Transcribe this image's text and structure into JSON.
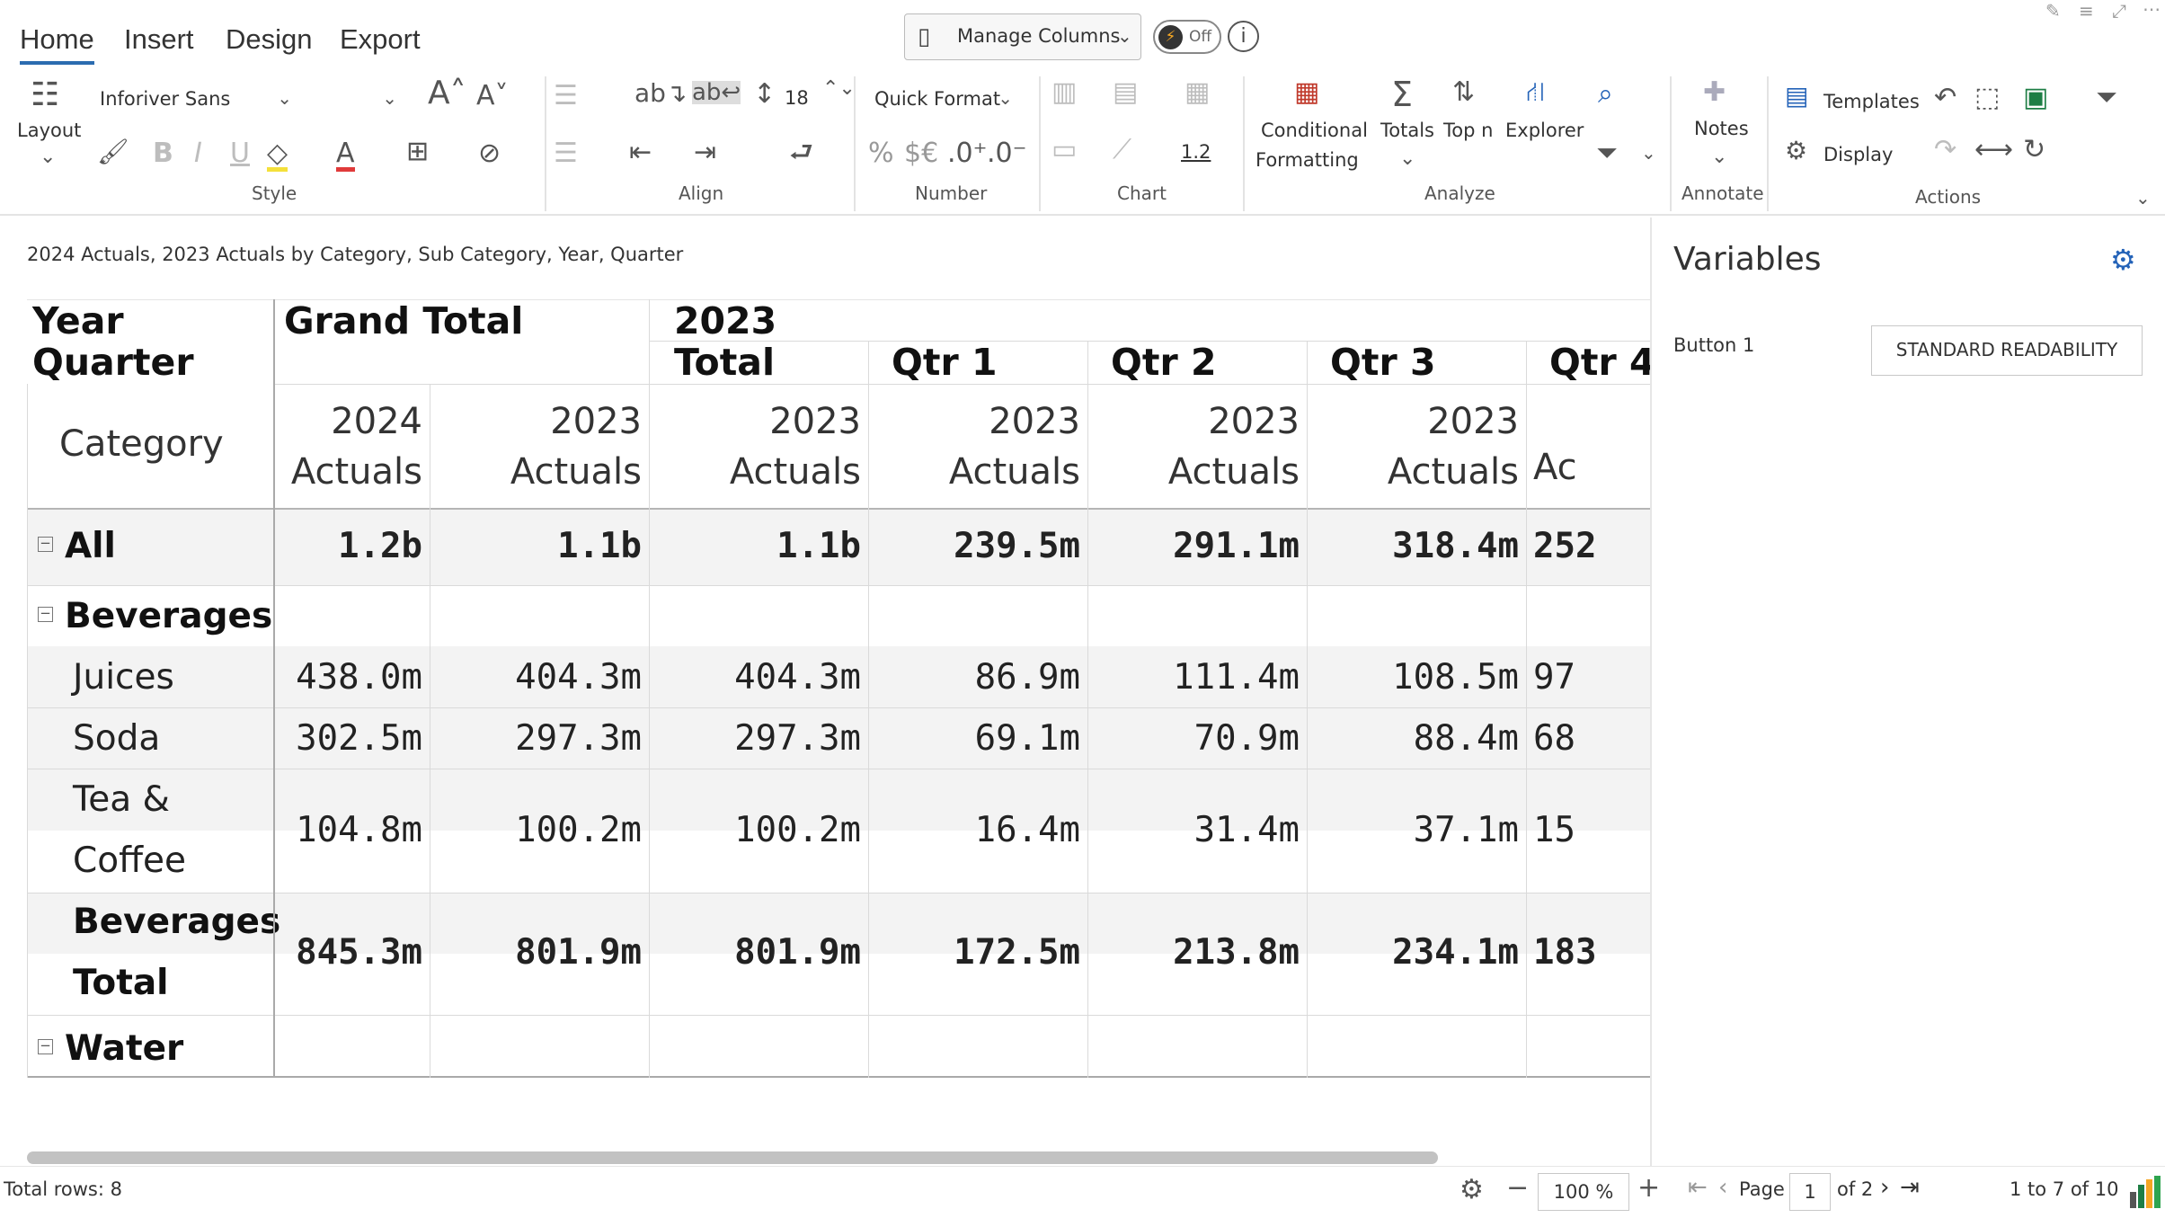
{
  "ribbon": {
    "tabs": [
      "Home",
      "Insert",
      "Design",
      "Export"
    ],
    "manage_columns": "Manage Columns",
    "toggle_off": "Off",
    "layout_label": "Layout",
    "font_name": "Inforiver Sans",
    "font_size_value": "",
    "row_height": "18",
    "quick_format": "Quick Format",
    "decimal_value": "1.2",
    "conditional_formatting": [
      "Conditional",
      "Formatting"
    ],
    "totals": "Totals",
    "top_n": "Top n",
    "explorer": "Explorer",
    "notes": "Notes",
    "templates": "Templates",
    "display": "Display",
    "groups": [
      "Style",
      "Align",
      "Number",
      "Chart",
      "Analyze",
      "Annotate",
      "Actions"
    ]
  },
  "subtitle": "2024 Actuals, 2023 Actuals by Category, Sub Category, Year, Quarter",
  "table": {
    "corner_labels": [
      "Year",
      "Quarter"
    ],
    "category_label": "Category",
    "grand_total": "Grand Total",
    "year_2023": "2023",
    "col_groups": [
      "Total",
      "Qtr 1",
      "Qtr 2",
      "Qtr 3",
      "Qtr 4"
    ],
    "measures": [
      [
        "2024",
        "Actuals"
      ],
      [
        "2023",
        "Actuals"
      ],
      [
        "2023",
        "Actuals"
      ],
      [
        "2023",
        "Actuals"
      ],
      [
        "2023",
        "Actuals"
      ],
      [
        "2023",
        "Actuals"
      ],
      [
        "",
        "Ac"
      ]
    ],
    "rows": [
      {
        "label": "All",
        "values": [
          "1.2b",
          "1.1b",
          "1.1b",
          "239.5m",
          "291.1m",
          "318.4m",
          "252"
        ]
      },
      {
        "label": "Beverages",
        "values": [
          "",
          "",
          "",
          "",
          "",
          "",
          ""
        ]
      },
      {
        "label": "Juices",
        "values": [
          "438.0m",
          "404.3m",
          "404.3m",
          "86.9m",
          "111.4m",
          "108.5m",
          "97"
        ]
      },
      {
        "label": "Soda",
        "values": [
          "302.5m",
          "297.3m",
          "297.3m",
          "69.1m",
          "70.9m",
          "88.4m",
          "68"
        ]
      },
      {
        "label": [
          "Tea &",
          "Coffee"
        ],
        "values": [
          "104.8m",
          "100.2m",
          "100.2m",
          "16.4m",
          "31.4m",
          "37.1m",
          "15"
        ]
      },
      {
        "label": [
          "Beverages",
          "Total"
        ],
        "values": [
          "845.3m",
          "801.9m",
          "801.9m",
          "172.5m",
          "213.8m",
          "234.1m",
          "183"
        ]
      },
      {
        "label": "Water",
        "values": [
          "",
          "",
          "",
          "",
          "",
          "",
          ""
        ]
      }
    ]
  },
  "variables": {
    "title": "Variables",
    "button_label": "Button 1",
    "button_value": "STANDARD READABILITY"
  },
  "status": {
    "total_rows": "Total rows: 8",
    "zoom": "100 %",
    "page_label": "Page",
    "page_value": "1",
    "page_of": "of 2",
    "range": "1 to 7 of 10"
  },
  "colors": {
    "accent": "#2b6cb0",
    "row_shade": "#f3f3f3",
    "excel_green": "#1e7e45",
    "explorer_blue": "#2463b8",
    "conditional_red": "#c0392b"
  }
}
